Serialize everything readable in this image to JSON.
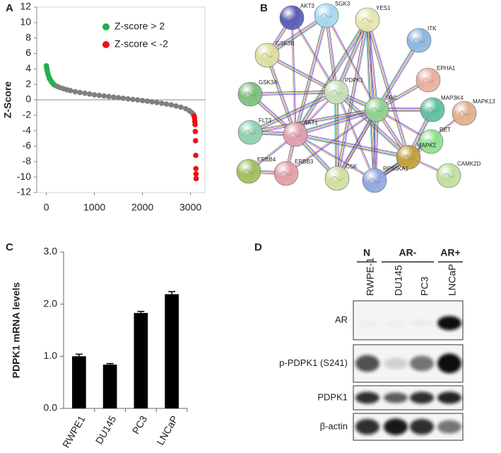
{
  "panel_labels": [
    "A",
    "B",
    "C",
    "D"
  ],
  "chart_data": [
    {
      "type": "scatter",
      "ylabel": "Z-Score",
      "xlim": [
        -200,
        3300
      ],
      "xticks": [
        0,
        1000,
        2000,
        3000
      ],
      "ylim": [
        -12,
        12
      ],
      "yticks": [
        -12,
        -10,
        -8,
        -6,
        -4,
        -2,
        0,
        2,
        4,
        6,
        8,
        10,
        12
      ],
      "legend": "upper right",
      "series": [
        {
          "color": "#7f7f7f",
          "x": [
            175,
            225,
            275,
            350,
            425,
            500,
            600,
            700,
            800,
            900,
            1000,
            1100,
            1200,
            1300,
            1400,
            1500,
            1600,
            1700,
            1800,
            1900,
            2000,
            2100,
            2200,
            2300,
            2400,
            2500,
            2600,
            2700,
            2800,
            2900,
            2975,
            3025,
            3060
          ],
          "values": [
            1.9,
            1.75,
            1.6,
            1.45,
            1.3,
            1.2,
            1.05,
            0.95,
            0.85,
            0.75,
            0.65,
            0.58,
            0.5,
            0.42,
            0.35,
            0.28,
            0.2,
            0.12,
            0.05,
            -0.02,
            -0.1,
            -0.18,
            -0.26,
            -0.35,
            -0.45,
            -0.55,
            -0.66,
            -0.8,
            -0.95,
            -1.15,
            -1.4,
            -1.65,
            -1.9
          ]
        },
        {
          "name": "Z-score > 2",
          "color": "#22b14c",
          "x": [
            0,
            5,
            10,
            20,
            30,
            45,
            60,
            80,
            100,
            125,
            150
          ],
          "values": [
            4.4,
            4.2,
            4.0,
            3.7,
            3.4,
            3.1,
            2.8,
            2.6,
            2.4,
            2.2,
            2.0
          ]
        },
        {
          "name": "Z-score < -2",
          "color": "#ee1111",
          "x": [
            3075,
            3085,
            3090,
            3095,
            3100,
            3105,
            3110,
            3112,
            3115,
            3118
          ],
          "values": [
            -2.1,
            -2.4,
            -2.8,
            -3.2,
            -4.1,
            -5.3,
            -7.2,
            -8.9,
            -9.6,
            -10.2
          ]
        }
      ]
    },
    {
      "type": "bar",
      "ylabel": "PDPK1 mRNA levels",
      "color": "#000000",
      "categories": [
        "RWPE1",
        "DU145",
        "PC3",
        "LNCaP"
      ],
      "values": [
        1.0,
        0.84,
        1.83,
        2.19
      ],
      "errors": [
        0.04,
        0.02,
        0.03,
        0.05
      ],
      "ylim": [
        0,
        3
      ],
      "yticks": [
        {
          "value": 0,
          "label": "0.0"
        },
        {
          "value": 1,
          "label": "1.0"
        },
        {
          "value": 2,
          "label": "2.0"
        },
        {
          "value": 3,
          "label": "3.0"
        }
      ]
    }
  ],
  "network": {
    "nodes": [
      {
        "label": "AKT3"
      },
      {
        "label": "SGK3"
      },
      {
        "label": "YES1"
      },
      {
        "label": "ITK"
      },
      {
        "label": "GSK3B"
      },
      {
        "label": "EPHA1"
      },
      {
        "label": "PDPK1"
      },
      {
        "label": "GSK3A"
      },
      {
        "label": "SRC"
      },
      {
        "label": "MAP3K4"
      },
      {
        "label": "MAPK13"
      },
      {
        "label": "FLT3"
      },
      {
        "label": "AKT1"
      },
      {
        "label": "RET"
      },
      {
        "label": "MAPK1"
      },
      {
        "label": "ERBB4"
      },
      {
        "label": "ERBB3"
      },
      {
        "label": "CSK"
      },
      {
        "label": "RPS6KA1"
      },
      {
        "label": "CAMK2D"
      }
    ]
  },
  "blot": {
    "groups": [
      "N",
      "AR-",
      "AR+"
    ],
    "lanes": [
      "RWPE-1",
      "DU145",
      "PC3",
      "LNCaP"
    ],
    "rows": [
      "AR",
      "p-PDPK1 (S241)",
      "PDPK1",
      "β-actin"
    ]
  }
}
